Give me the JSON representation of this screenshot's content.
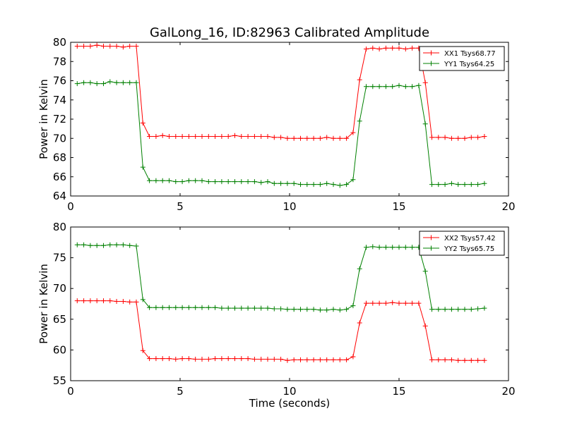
{
  "figure": {
    "title": "GalLong_16, ID:82963 Calibrated Amplitude"
  },
  "chart_data": [
    {
      "type": "line",
      "title": "GalLong_16, ID:82963 Calibrated Amplitude",
      "xlabel": "",
      "ylabel": "Power in Kelvin",
      "xlim": [
        0,
        20
      ],
      "ylim": [
        64,
        80
      ],
      "xticks": [
        0,
        5,
        10,
        15,
        20
      ],
      "yticks": [
        64,
        66,
        68,
        70,
        72,
        74,
        76,
        78,
        80
      ],
      "grid": false,
      "legend_position": "top-right",
      "x": [
        0.3,
        0.6,
        0.9,
        1.2,
        1.5,
        1.8,
        2.1,
        2.4,
        2.7,
        3.0,
        3.3,
        3.6,
        3.9,
        4.2,
        4.5,
        4.8,
        5.1,
        5.4,
        5.7,
        6.0,
        6.3,
        6.6,
        6.9,
        7.2,
        7.5,
        7.8,
        8.1,
        8.4,
        8.7,
        9.0,
        9.3,
        9.6,
        9.9,
        10.2,
        10.5,
        10.8,
        11.1,
        11.4,
        11.7,
        12.0,
        12.3,
        12.6,
        12.9,
        13.2,
        13.5,
        13.8,
        14.1,
        14.4,
        14.7,
        15.0,
        15.3,
        15.6,
        15.9,
        16.2,
        16.5,
        16.8,
        17.1,
        17.4,
        17.7,
        18.0,
        18.3,
        18.6,
        18.9
      ],
      "series": [
        {
          "name": "XX1 Tsys68.77",
          "color": "#ff0000",
          "values": [
            79.6,
            79.6,
            79.6,
            79.7,
            79.6,
            79.6,
            79.6,
            79.5,
            79.6,
            79.6,
            71.6,
            70.2,
            70.2,
            70.3,
            70.2,
            70.2,
            70.2,
            70.2,
            70.2,
            70.2,
            70.2,
            70.2,
            70.2,
            70.2,
            70.3,
            70.2,
            70.2,
            70.2,
            70.2,
            70.2,
            70.1,
            70.1,
            70.0,
            70.0,
            70.0,
            70.0,
            70.0,
            70.0,
            70.1,
            70.0,
            70.0,
            70.0,
            70.6,
            76.1,
            79.3,
            79.4,
            79.3,
            79.4,
            79.4,
            79.4,
            79.3,
            79.4,
            79.4,
            75.8,
            70.1,
            70.1,
            70.1,
            70.0,
            70.0,
            70.0,
            70.1,
            70.1,
            70.2
          ]
        },
        {
          "name": "YY1 Tsys64.25",
          "color": "#008000",
          "values": [
            75.7,
            75.8,
            75.8,
            75.7,
            75.7,
            75.9,
            75.8,
            75.8,
            75.8,
            75.8,
            67.0,
            65.6,
            65.6,
            65.6,
            65.6,
            65.5,
            65.5,
            65.6,
            65.6,
            65.6,
            65.5,
            65.5,
            65.5,
            65.5,
            65.5,
            65.5,
            65.5,
            65.5,
            65.4,
            65.5,
            65.3,
            65.3,
            65.3,
            65.3,
            65.2,
            65.2,
            65.2,
            65.2,
            65.3,
            65.2,
            65.1,
            65.2,
            65.7,
            71.8,
            75.4,
            75.4,
            75.4,
            75.4,
            75.4,
            75.5,
            75.4,
            75.4,
            75.5,
            71.5,
            65.2,
            65.2,
            65.2,
            65.3,
            65.2,
            65.2,
            65.2,
            65.2,
            65.3
          ]
        }
      ]
    },
    {
      "type": "line",
      "title": "",
      "xlabel": "Time (seconds)",
      "ylabel": "Power in Kelvin",
      "xlim": [
        0,
        20
      ],
      "ylim": [
        55,
        80
      ],
      "xticks": [
        0,
        5,
        10,
        15,
        20
      ],
      "yticks": [
        55,
        60,
        65,
        70,
        75,
        80
      ],
      "grid": false,
      "legend_position": "top-right",
      "x": [
        0.3,
        0.6,
        0.9,
        1.2,
        1.5,
        1.8,
        2.1,
        2.4,
        2.7,
        3.0,
        3.3,
        3.6,
        3.9,
        4.2,
        4.5,
        4.8,
        5.1,
        5.4,
        5.7,
        6.0,
        6.3,
        6.6,
        6.9,
        7.2,
        7.5,
        7.8,
        8.1,
        8.4,
        8.7,
        9.0,
        9.3,
        9.6,
        9.9,
        10.2,
        10.5,
        10.8,
        11.1,
        11.4,
        11.7,
        12.0,
        12.3,
        12.6,
        12.9,
        13.2,
        13.5,
        13.8,
        14.1,
        14.4,
        14.7,
        15.0,
        15.3,
        15.6,
        15.9,
        16.2,
        16.5,
        16.8,
        17.1,
        17.4,
        17.7,
        18.0,
        18.3,
        18.6,
        18.9
      ],
      "series": [
        {
          "name": "XX2 Tsys57.42",
          "color": "#ff0000",
          "values": [
            68.0,
            68.0,
            68.0,
            68.0,
            68.0,
            68.0,
            67.9,
            67.9,
            67.8,
            67.8,
            59.9,
            58.6,
            58.6,
            58.6,
            58.6,
            58.5,
            58.6,
            58.6,
            58.5,
            58.5,
            58.5,
            58.6,
            58.6,
            58.6,
            58.6,
            58.6,
            58.6,
            58.5,
            58.5,
            58.5,
            58.5,
            58.5,
            58.3,
            58.4,
            58.4,
            58.4,
            58.4,
            58.4,
            58.4,
            58.4,
            58.4,
            58.4,
            58.9,
            64.4,
            67.6,
            67.6,
            67.6,
            67.6,
            67.7,
            67.6,
            67.6,
            67.6,
            67.6,
            63.9,
            58.4,
            58.4,
            58.4,
            58.4,
            58.3,
            58.3,
            58.3,
            58.3,
            58.3
          ]
        },
        {
          "name": "YY2 Tsys65.75",
          "color": "#008000",
          "values": [
            77.1,
            77.1,
            77.0,
            77.0,
            77.0,
            77.1,
            77.1,
            77.1,
            77.0,
            76.9,
            68.2,
            66.9,
            66.9,
            66.9,
            66.9,
            66.9,
            66.9,
            66.9,
            66.9,
            66.9,
            66.9,
            66.9,
            66.8,
            66.8,
            66.8,
            66.8,
            66.8,
            66.8,
            66.8,
            66.8,
            66.7,
            66.7,
            66.6,
            66.6,
            66.6,
            66.6,
            66.6,
            66.5,
            66.5,
            66.6,
            66.5,
            66.6,
            67.2,
            73.2,
            76.7,
            76.8,
            76.7,
            76.7,
            76.7,
            76.7,
            76.7,
            76.7,
            76.7,
            72.8,
            66.6,
            66.6,
            66.6,
            66.6,
            66.6,
            66.6,
            66.6,
            66.7,
            66.8
          ]
        }
      ]
    }
  ]
}
